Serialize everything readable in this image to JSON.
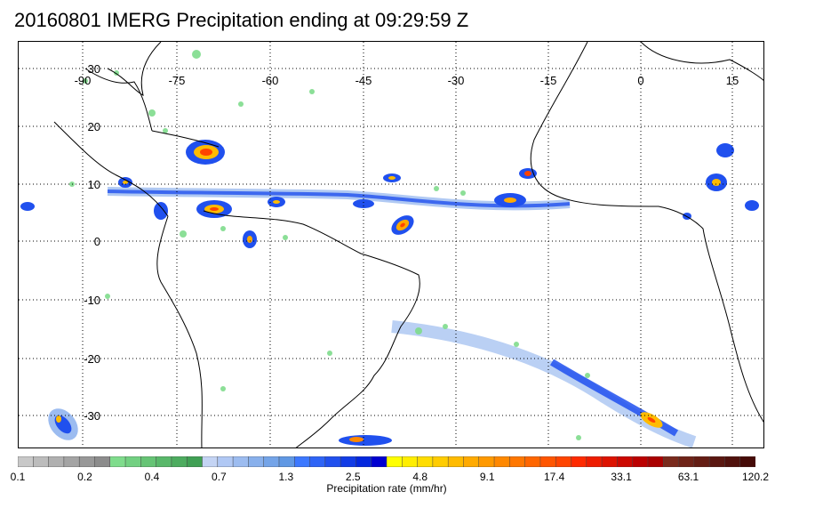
{
  "title": "20160801 IMERG Precipitation ending at 09:29:59 Z",
  "map": {
    "longitude_labels": [
      "-90",
      "-75",
      "-60",
      "-45",
      "-30",
      "-15",
      "0",
      "15"
    ],
    "latitude_labels": [
      "30",
      "20",
      "10",
      "0",
      "-10",
      "-20",
      "-30"
    ],
    "gridlines": "dotted",
    "land_outline": "coastlines"
  },
  "colorbar": {
    "caption": "Precipitation rate (mm/hr)",
    "tick_labels": [
      "0.1",
      "0.2",
      "0.4",
      "0.7",
      "1.3",
      "2.5",
      "4.8",
      "9.1",
      "17.4",
      "33.1",
      "63.1",
      "120.2"
    ],
    "colors": [
      "#c8c8c8",
      "#bcbcbc",
      "#b0b0b0",
      "#a4a4a4",
      "#989898",
      "#8c8c8c",
      "#7fdc8c",
      "#72d081",
      "#66c475",
      "#59b86a",
      "#4dac5f",
      "#40a054",
      "#c4d4f4",
      "#b0c8f4",
      "#9cbcf0",
      "#88b0ec",
      "#74a4e8",
      "#6098e4",
      "#3c78ff",
      "#2e64f6",
      "#2050ee",
      "#123ce6",
      "#0428de",
      "#0000d0",
      "#ffff00",
      "#ffee00",
      "#ffdd00",
      "#ffcc00",
      "#ffbb00",
      "#ffaa00",
      "#ff9900",
      "#ff8800",
      "#ff7700",
      "#ff6600",
      "#ff5500",
      "#ff4400",
      "#ff2a00",
      "#ee1c00",
      "#dd1200",
      "#cc0800",
      "#bb0000",
      "#aa0000",
      "#7a2a1c",
      "#6f2318",
      "#641d14",
      "#5a1710",
      "#50110c",
      "#460b08"
    ]
  }
}
